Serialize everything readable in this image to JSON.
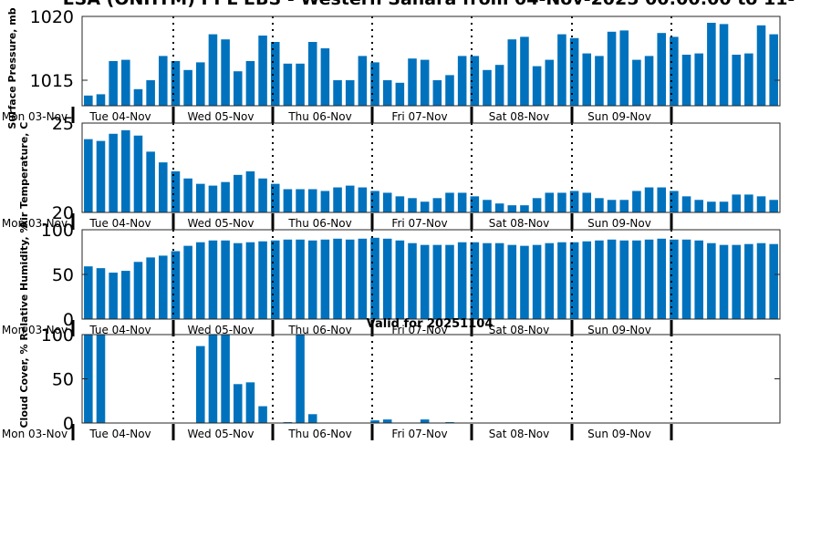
{
  "title": "ESA (ONHTM) PPL EBS  - Western Sahara from 04-Nov-2025 00:00:00 to 11-",
  "bar_color": "#0072bd",
  "day_labels": [
    "Mon 03-Nov",
    "Tue 04-Nov",
    "Wed 05-Nov",
    "Thu 06-Nov",
    "Fri 07-Nov",
    "Sat 08-Nov",
    "Sun 09-Nov"
  ],
  "valid_text": "Valid for 20251104",
  "chart_data": [
    {
      "type": "bar",
      "ylabel": "Surface Pressure, mb",
      "ylim": [
        1013,
        1020
      ],
      "yticks": [
        1015,
        1020
      ],
      "values": [
        1013.8,
        1013.9,
        1016.5,
        1016.6,
        1014.3,
        1015.0,
        1016.9,
        1016.5,
        1015.8,
        1016.4,
        1018.6,
        1018.2,
        1015.7,
        1016.5,
        1018.5,
        1018.0,
        1016.3,
        1016.3,
        1018.0,
        1017.5,
        1015.0,
        1015.0,
        1016.9,
        1016.4,
        1015.0,
        1014.8,
        1016.7,
        1016.6,
        1015.0,
        1015.4,
        1016.9,
        1016.9,
        1015.8,
        1016.2,
        1018.2,
        1018.4,
        1016.1,
        1016.6,
        1018.6,
        1018.3,
        1017.1,
        1016.9,
        1018.8,
        1018.9,
        1016.6,
        1016.9,
        1018.7,
        1018.4,
        1017.0,
        1017.1,
        1019.5,
        1019.4,
        1017.0,
        1017.1,
        1019.3,
        1018.6
      ]
    },
    {
      "type": "bar",
      "ylabel": "Air Temperature, C",
      "ylim": [
        20,
        25
      ],
      "yticks": [
        20,
        25
      ],
      "values": [
        24.1,
        24.0,
        24.4,
        24.6,
        24.3,
        23.4,
        22.8,
        22.3,
        21.9,
        21.6,
        21.5,
        21.7,
        22.1,
        22.3,
        21.9,
        21.6,
        21.3,
        21.3,
        21.3,
        21.2,
        21.4,
        21.5,
        21.4,
        21.2,
        21.1,
        20.9,
        20.8,
        20.6,
        20.8,
        21.1,
        21.1,
        20.9,
        20.7,
        20.5,
        20.4,
        20.4,
        20.8,
        21.1,
        21.1,
        21.2,
        21.1,
        20.8,
        20.7,
        20.7,
        21.2,
        21.4,
        21.4,
        21.2,
        20.9,
        20.7,
        20.6,
        20.6,
        21.0,
        21.0,
        20.9,
        20.7
      ]
    },
    {
      "type": "bar",
      "ylabel": "Relative Humidity, %",
      "ylim": [
        0,
        100
      ],
      "yticks": [
        0,
        50,
        100
      ],
      "values": [
        59,
        57,
        52,
        54,
        64,
        69,
        71,
        76,
        82,
        86,
        88,
        88,
        85,
        86,
        87,
        88,
        89,
        89,
        88,
        89,
        90,
        89,
        90,
        91,
        90,
        88,
        85,
        83,
        83,
        83,
        86,
        86,
        85,
        85,
        83,
        82,
        83,
        85,
        86,
        86,
        87,
        88,
        89,
        88,
        88,
        89,
        90,
        89,
        89,
        88,
        85,
        83,
        83,
        84,
        85,
        84
      ]
    },
    {
      "type": "bar",
      "ylabel": "Cloud Cover, %",
      "ylim": [
        0,
        100
      ],
      "yticks": [
        0,
        50,
        100
      ],
      "values": [
        100,
        100,
        0,
        0,
        0,
        0,
        0,
        0,
        0,
        87,
        100,
        100,
        44,
        46,
        19,
        0,
        1,
        100,
        10,
        0,
        0,
        0,
        0,
        3,
        4,
        0,
        0,
        4,
        0,
        1,
        0,
        0,
        0,
        0,
        0,
        0,
        0,
        0,
        0,
        0,
        0,
        0,
        0,
        0,
        0,
        0,
        0,
        0,
        0,
        0,
        0,
        0,
        0,
        0,
        0,
        0
      ]
    }
  ]
}
